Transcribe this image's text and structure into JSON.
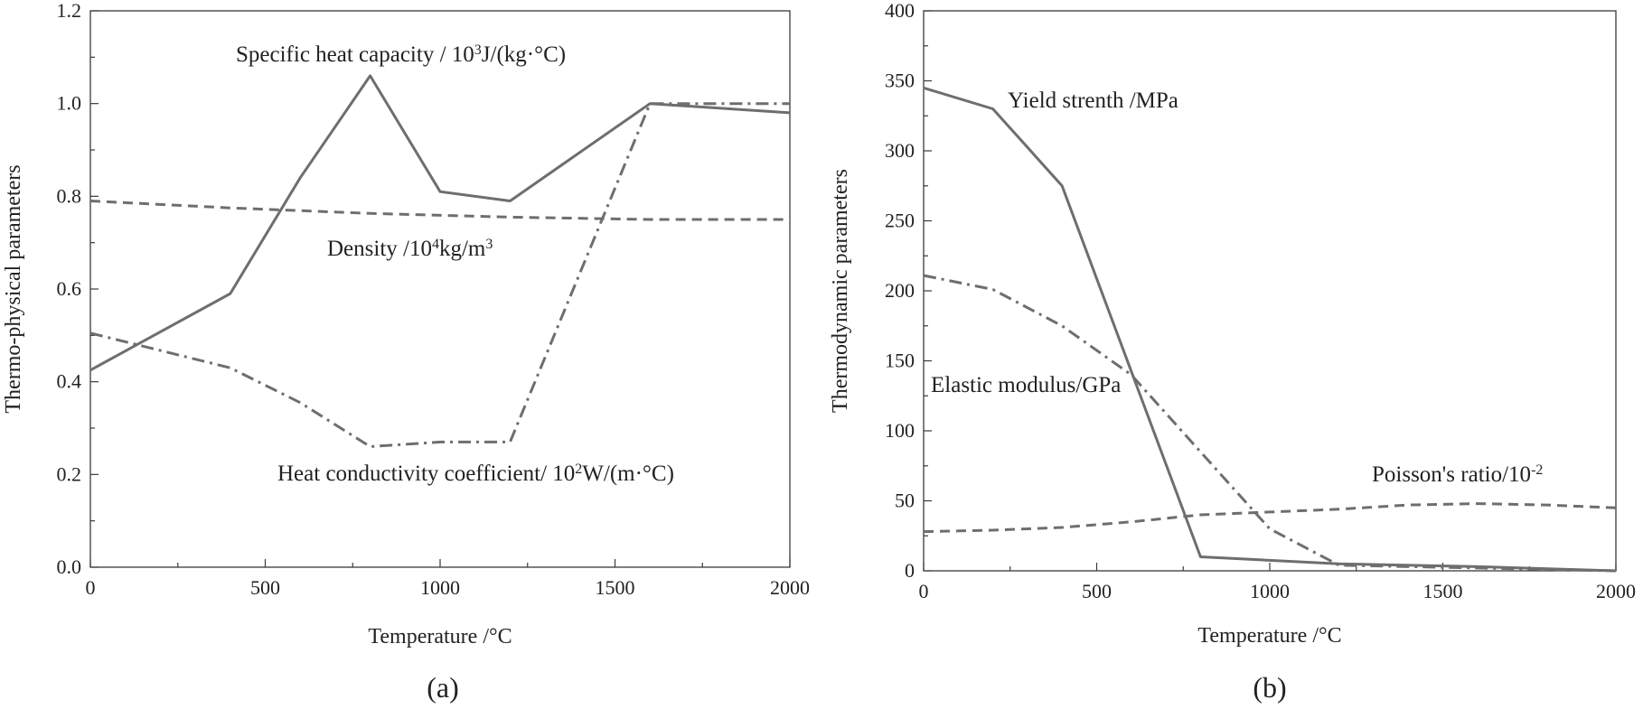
{
  "chart_data": [
    {
      "type": "line",
      "panel_label": "(a)",
      "xlabel": "Temperature /°C",
      "ylabel": "Thermo-physical parameters",
      "xlim": [
        0,
        2000
      ],
      "ylim": [
        0,
        1.2
      ],
      "xticks": [
        0,
        500,
        1000,
        1500,
        2000
      ],
      "xtick_labels": [
        "0",
        "500",
        "1000",
        "1500",
        "2000"
      ],
      "yticks": [
        0,
        0.2,
        0.4,
        0.6,
        0.8,
        1.0,
        1.2
      ],
      "ytick_labels": [
        "0.0",
        "0.2",
        "0.4",
        "0.6",
        "0.8",
        "1.0",
        "1.2"
      ],
      "series": [
        {
          "name": "Specific heat capacity",
          "label_text": "Specific heat capacity / 10",
          "label_sup": "3",
          "label_tail": "J/(kg·°C)",
          "style": "solid",
          "color": "#6e6e6e",
          "x": [
            0,
            400,
            600,
            800,
            1000,
            1200,
            1600,
            2000
          ],
          "y": [
            0.425,
            0.59,
            0.84,
            1.06,
            0.81,
            0.79,
            1.0,
            0.98
          ]
        },
        {
          "name": "Density",
          "label_text": "Density /10",
          "label_sup": "4",
          "label_tail": "kg/m",
          "label_sup2": "3",
          "style": "dashed",
          "color": "#6e6e6e",
          "x": [
            0,
            400,
            800,
            1200,
            1600,
            2000
          ],
          "y": [
            0.79,
            0.775,
            0.763,
            0.755,
            0.75,
            0.75
          ]
        },
        {
          "name": "Heat conductivity coefficient",
          "label_text": "Heat conductivity coefficient/ 10",
          "label_sup": "2",
          "label_tail": "W/(m·°C)",
          "style": "dashdot",
          "color": "#6e6e6e",
          "x": [
            0,
            400,
            600,
            800,
            1000,
            1200,
            1600,
            2000
          ],
          "y": [
            0.505,
            0.43,
            0.355,
            0.26,
            0.27,
            0.27,
            1.0,
            1.0
          ]
        }
      ]
    },
    {
      "type": "line",
      "panel_label": "(b)",
      "xlabel": "Temperature /°C",
      "ylabel": "Thermodynamic parameters",
      "xlim": [
        0,
        2000
      ],
      "ylim": [
        0,
        400
      ],
      "xticks": [
        0,
        500,
        1000,
        1500,
        2000
      ],
      "xtick_labels": [
        "0",
        "500",
        "1000",
        "1500",
        "2000"
      ],
      "yticks": [
        0,
        50,
        100,
        150,
        200,
        250,
        300,
        350,
        400
      ],
      "ytick_labels": [
        "0",
        "50",
        "100",
        "150",
        "200",
        "250",
        "300",
        "350",
        "400"
      ],
      "series": [
        {
          "name": "Yield strenth",
          "label_text": "Yield strenth /MPa",
          "style": "solid",
          "color": "#6e6e6e",
          "x": [
            0,
            200,
            400,
            800,
            1200,
            1600,
            2000
          ],
          "y": [
            345,
            330,
            275,
            10,
            5,
            3,
            0
          ]
        },
        {
          "name": "Elastic modulus",
          "label_text": "Elastic modulus/GPa",
          "style": "dashdot",
          "color": "#6e6e6e",
          "x": [
            0,
            200,
            400,
            600,
            800,
            1000,
            1200,
            1600,
            2000
          ],
          "y": [
            211,
            201,
            175,
            140,
            85,
            30,
            4,
            2,
            0
          ]
        },
        {
          "name": "Poisson's ratio",
          "label_text": "Poisson's ratio/10",
          "label_sup": "-2",
          "style": "dashed",
          "color": "#6e6e6e",
          "x": [
            0,
            200,
            400,
            600,
            800,
            1000,
            1200,
            1400,
            1600,
            1800,
            2000
          ],
          "y": [
            28,
            29,
            31,
            35,
            40,
            42,
            44,
            47,
            48,
            47,
            45
          ]
        }
      ]
    }
  ]
}
